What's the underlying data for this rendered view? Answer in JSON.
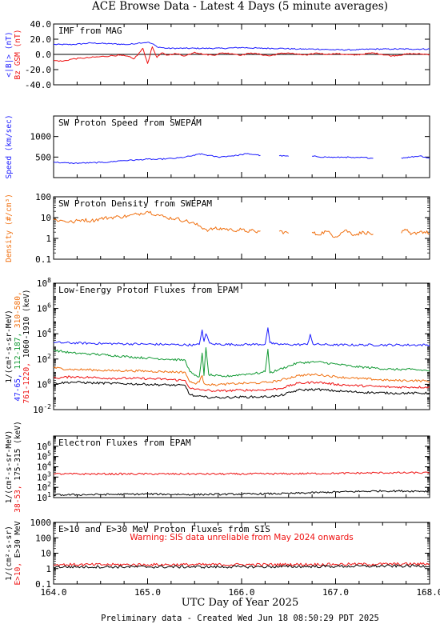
{
  "page": {
    "title": "ACE Browse Data - Latest 4 Days (5 minute averages)",
    "xlabel": "UTC Day of Year 2025",
    "footer": "Preliminary data - Created Wed Jun 18 08:50:29 PDT 2025"
  },
  "colors": {
    "blue": "#1a1aff",
    "red": "#ee1111",
    "orange": "#f07010",
    "green": "#119933",
    "black": "#000000"
  },
  "chart_data": [
    {
      "type": "line",
      "title": "IMF from MAG",
      "x_range": [
        164.0,
        168.0
      ],
      "y_scale": "linear",
      "ylim": [
        -40,
        40
      ],
      "y_ticks": [
        "40.0",
        "20.0",
        "0.0",
        "-20.0",
        "-40.0"
      ],
      "y_tick_values": [
        40,
        20,
        0,
        -20,
        -40
      ],
      "ylabel_lines": [
        {
          "text": "<|B|> (nT)",
          "color": "#1a1aff"
        },
        {
          "text": "Bz GSM (nT)",
          "color": "#ee1111"
        }
      ],
      "zero_line": true,
      "series": [
        {
          "name": "<|B|> (nT)",
          "color": "#1a1aff",
          "x": [
            164.0,
            164.2,
            164.4,
            164.6,
            164.8,
            164.9,
            165.0,
            165.05,
            165.1,
            165.2,
            165.4,
            165.6,
            165.8,
            166.0,
            166.2,
            166.4,
            166.6,
            166.8,
            167.0,
            167.2,
            167.4,
            167.6,
            167.8,
            168.0
          ],
          "y": [
            13,
            13,
            15,
            14,
            13,
            15,
            16,
            14,
            10,
            8,
            8,
            8,
            8,
            9,
            8,
            8,
            7,
            7,
            6,
            6,
            7,
            7,
            7,
            7
          ]
        },
        {
          "name": "Bz GSM (nT)",
          "color": "#ee1111",
          "x": [
            164.0,
            164.1,
            164.2,
            164.3,
            164.4,
            164.5,
            164.6,
            164.7,
            164.8,
            164.85,
            164.9,
            164.95,
            165.0,
            165.05,
            165.1,
            165.15,
            165.2,
            165.3,
            165.4,
            165.5,
            165.6,
            165.7,
            165.8,
            165.9,
            166.0,
            166.1,
            166.2,
            166.3,
            166.4,
            166.5,
            166.6,
            166.7,
            166.8,
            166.9,
            167.0,
            167.2,
            167.4,
            167.6,
            167.8,
            168.0
          ],
          "y": [
            -8,
            -9,
            -6,
            -5,
            -4,
            -3,
            -2,
            -1,
            -3,
            -6,
            0,
            8,
            -12,
            10,
            -4,
            2,
            -1,
            1,
            -2,
            3,
            0,
            -1,
            2,
            1,
            -1,
            2,
            0,
            -2,
            1,
            2,
            0,
            -1,
            2,
            0,
            1,
            -1,
            2,
            -2,
            1,
            0
          ]
        }
      ]
    },
    {
      "type": "line",
      "title": "SW Proton Speed from SWEPAM",
      "x_range": [
        164.0,
        168.0
      ],
      "y_scale": "linear",
      "ylim": [
        0,
        1500
      ],
      "y_ticks": [
        "1000",
        "500"
      ],
      "y_tick_values": [
        1000,
        500
      ],
      "ylabel_lines": [
        {
          "text": "Speed (km/sec)",
          "color": "#1a1aff"
        }
      ],
      "series": [
        {
          "name": "Speed (km/sec)",
          "color": "#1a1aff",
          "segment_gap": 0.05,
          "x": [
            164.0,
            164.1,
            164.2,
            164.3,
            164.4,
            164.5,
            164.6,
            164.7,
            164.8,
            164.9,
            165.0,
            165.1,
            165.2,
            165.3,
            165.4,
            165.5,
            165.55,
            165.6,
            165.65,
            165.7,
            165.75,
            165.8,
            165.85,
            165.9,
            165.95,
            166.0,
            166.05,
            166.1,
            166.15,
            166.2,
            166.4,
            166.5,
            166.75,
            166.8,
            166.9,
            167.0,
            167.1,
            167.2,
            167.3,
            167.4,
            167.7,
            167.75,
            167.8,
            167.9,
            168.0
          ],
          "y": [
            380,
            360,
            350,
            355,
            360,
            370,
            380,
            410,
            420,
            430,
            450,
            440,
            460,
            470,
            500,
            540,
            580,
            560,
            540,
            520,
            500,
            510,
            520,
            530,
            540,
            560,
            580,
            570,
            560,
            540,
            530,
            520,
            520,
            510,
            500,
            490,
            500,
            480,
            490,
            470,
            480,
            490,
            500,
            530,
            470
          ]
        }
      ]
    },
    {
      "type": "line",
      "title": "SW Proton Density from SWEPAM",
      "x_range": [
        164.0,
        168.0
      ],
      "y_scale": "log",
      "ylim": [
        0.1,
        100
      ],
      "y_ticks": [
        "100",
        "10",
        "1",
        "0.1"
      ],
      "y_tick_values": [
        100,
        10,
        1,
        0.1
      ],
      "ylabel_lines": [
        {
          "text": "Density (#/cm³)",
          "color": "#f07010"
        }
      ],
      "series": [
        {
          "name": "Density (#/cm³)",
          "color": "#f07010",
          "segment_gap": 0.05,
          "x": [
            164.0,
            164.1,
            164.2,
            164.3,
            164.4,
            164.5,
            164.6,
            164.7,
            164.8,
            164.9,
            165.0,
            165.1,
            165.2,
            165.3,
            165.4,
            165.5,
            165.55,
            165.6,
            165.65,
            165.7,
            165.75,
            165.8,
            165.9,
            166.0,
            166.05,
            166.1,
            166.15,
            166.2,
            166.4,
            166.5,
            166.75,
            166.8,
            166.9,
            167.0,
            167.1,
            167.2,
            167.3,
            167.4,
            167.7,
            167.75,
            167.8,
            167.9,
            168.0
          ],
          "y": [
            8,
            7,
            6,
            8,
            7,
            9,
            10,
            11,
            12,
            15,
            20,
            14,
            10,
            9,
            7,
            5,
            4,
            3,
            2.5,
            3,
            2.8,
            3,
            2.5,
            2.6,
            2.2,
            2.4,
            2.0,
            2.3,
            2.2,
            1.8,
            2.0,
            1.5,
            2.2,
            1.2,
            2.5,
            1.5,
            2.0,
            1.6,
            1.8,
            2.5,
            1.5,
            2.2,
            1.8
          ]
        }
      ]
    },
    {
      "type": "line",
      "title": "Low-Energy Proton Fluxes from EPAM",
      "x_range": [
        164.0,
        168.0
      ],
      "y_scale": "log",
      "ylim": [
        0.01,
        100000000
      ],
      "y_ticks": [
        "10^8",
        "10^6",
        "10^4",
        "10^2",
        "10^0",
        "10^-2"
      ],
      "y_tick_values": [
        100000000,
        1000000,
        10000,
        100,
        1,
        0.01
      ],
      "ylabel_lines": [
        {
          "text": "1/(cm²-s-sr-MeV)",
          "color": "#000000"
        },
        {
          "text": "47-65,",
          "color": "#1a1aff"
        },
        {
          "text": "112-187,",
          "color": "#119933"
        },
        {
          "text": "310-580,",
          "color": "#f07010"
        },
        {
          "text": "761-1220,",
          "color": "#ee1111"
        },
        {
          "text": "1060-1910 (keV)",
          "color": "#000000"
        }
      ],
      "series": [
        {
          "name": "47-65",
          "color": "#1a1aff",
          "x": [
            164.0,
            164.5,
            165.0,
            165.5,
            165.55,
            165.58,
            165.6,
            165.62,
            165.66,
            165.7,
            166.0,
            166.25,
            166.28,
            166.3,
            166.35,
            166.5,
            166.7,
            166.73,
            166.76,
            167.0,
            167.5,
            168.0
          ],
          "y": [
            2000,
            1700,
            1500,
            1300,
            1400,
            20000,
            2500,
            10000,
            1800,
            1500,
            1400,
            1500,
            30000,
            2000,
            1500,
            1400,
            1400,
            9000,
            1500,
            1300,
            1300,
            1300
          ]
        },
        {
          "name": "112-187",
          "color": "#119933",
          "x": [
            164.0,
            164.2,
            164.4,
            164.6,
            164.8,
            165.0,
            165.2,
            165.4,
            165.45,
            165.5,
            165.55,
            165.58,
            165.6,
            165.62,
            165.65,
            165.7,
            165.8,
            166.0,
            166.2,
            166.25,
            166.28,
            166.3,
            166.4,
            166.6,
            166.8,
            167.0,
            167.2,
            167.4,
            167.6,
            167.8,
            168.0
          ],
          "y": [
            500,
            300,
            250,
            200,
            150,
            120,
            100,
            80,
            10,
            5,
            4,
            300,
            5,
            800,
            6,
            5,
            4,
            6,
            8,
            10,
            600,
            8,
            15,
            50,
            60,
            40,
            25,
            20,
            15,
            15,
            12
          ]
        },
        {
          "name": "310-580",
          "color": "#f07010",
          "x": [
            164.0,
            164.2,
            164.4,
            164.6,
            164.8,
            165.0,
            165.2,
            165.4,
            165.45,
            165.5,
            165.55,
            165.58,
            165.6,
            165.65,
            165.7,
            165.8,
            166.0,
            166.2,
            166.3,
            166.4,
            166.6,
            166.8,
            167.0,
            167.2,
            167.4,
            167.6,
            167.8,
            168.0
          ],
          "y": [
            20,
            15,
            14,
            12,
            12,
            11,
            10,
            9,
            1.5,
            1.2,
            1.5,
            5,
            1.2,
            1.0,
            0.9,
            1.0,
            1.2,
            1.3,
            1.5,
            2,
            5,
            6,
            4,
            3,
            2.5,
            2,
            2,
            1.8
          ]
        },
        {
          "name": "761-1220",
          "color": "#ee1111",
          "x": [
            164.0,
            164.2,
            164.4,
            164.6,
            164.8,
            165.0,
            165.2,
            165.4,
            165.45,
            165.5,
            165.6,
            165.7,
            165.8,
            166.0,
            166.2,
            166.4,
            166.6,
            166.8,
            167.0,
            167.2,
            167.4,
            167.6,
            167.8,
            168.0
          ],
          "y": [
            3,
            4,
            3.5,
            3,
            3,
            2.8,
            2.5,
            2,
            0.5,
            0.4,
            0.35,
            0.3,
            0.3,
            0.35,
            0.35,
            0.45,
            1.2,
            1.5,
            1.0,
            0.8,
            0.7,
            0.6,
            0.6,
            0.6
          ]
        },
        {
          "name": "1060-1910",
          "color": "#000000",
          "x": [
            164.0,
            164.2,
            164.4,
            164.6,
            164.8,
            165.0,
            165.2,
            165.4,
            165.45,
            165.5,
            165.6,
            165.7,
            165.8,
            166.0,
            166.2,
            166.4,
            166.6,
            166.8,
            167.0,
            167.2,
            167.4,
            167.6,
            167.8,
            168.0
          ],
          "y": [
            1.2,
            1.5,
            1.3,
            1.2,
            1.1,
            1.0,
            0.9,
            0.8,
            0.15,
            0.12,
            0.1,
            0.09,
            0.09,
            0.1,
            0.1,
            0.12,
            0.35,
            0.4,
            0.3,
            0.25,
            0.22,
            0.2,
            0.2,
            0.2
          ]
        }
      ]
    },
    {
      "type": "line",
      "title": "Electron Fluxes from EPAM",
      "x_range": [
        164.0,
        168.0
      ],
      "y_scale": "log",
      "ylim": [
        10,
        10000000
      ],
      "y_ticks": [
        "10^6",
        "10^5",
        "10^4",
        "10^3",
        "10^2",
        "10^1"
      ],
      "y_tick_values": [
        1000000,
        100000,
        10000,
        1000,
        100,
        10
      ],
      "ylabel_lines": [
        {
          "text": "1/(cm²-s-sr-MeV)",
          "color": "#000000"
        },
        {
          "text": "38-53,",
          "color": "#ee1111"
        },
        {
          "text": "175-315 (keV)",
          "color": "#000000"
        }
      ],
      "series": [
        {
          "name": "38-53",
          "color": "#ee1111",
          "x": [
            164.0,
            164.5,
            165.0,
            165.5,
            166.0,
            166.5,
            167.0,
            167.5,
            168.0
          ],
          "y": [
            2000,
            2000,
            2000,
            2000,
            2000,
            2100,
            2300,
            2600,
            2600
          ]
        },
        {
          "name": "175-315",
          "color": "#000000",
          "x": [
            164.0,
            164.5,
            165.0,
            165.5,
            166.0,
            166.5,
            167.0,
            167.5,
            168.0
          ],
          "y": [
            18,
            20,
            22,
            20,
            22,
            25,
            35,
            45,
            42
          ]
        }
      ]
    },
    {
      "type": "line",
      "title": "E>10 and E>30 MeV Proton Fluxes from SIS",
      "x_range": [
        164.0,
        168.0
      ],
      "x_ticks": [
        "164.0",
        "165.0",
        "166.0",
        "167.0",
        "168.0"
      ],
      "x_tick_values": [
        164.0,
        165.0,
        166.0,
        167.0,
        168.0
      ],
      "y_scale": "log",
      "ylim": [
        0.1,
        1000
      ],
      "y_ticks": [
        "1000",
        "100",
        "10",
        "1",
        "0.1"
      ],
      "y_tick_values": [
        1000,
        100,
        10,
        1,
        0.1
      ],
      "ylabel_lines": [
        {
          "text": "1/(cm²-s-sr)",
          "color": "#000000"
        },
        {
          "text": "E>10,",
          "color": "#ee1111"
        },
        {
          "text": "E>30 MeV",
          "color": "#000000"
        }
      ],
      "annotation": "Warning: SIS data unreliable from May 2024 onwards",
      "series": [
        {
          "name": "E>10",
          "color": "#ee1111",
          "x": [
            164.0,
            165.0,
            166.0,
            167.0,
            168.0
          ],
          "y": [
            1.8,
            1.8,
            1.8,
            1.9,
            2.0
          ]
        },
        {
          "name": "E>30 MeV",
          "color": "#000000",
          "x": [
            164.0,
            165.0,
            166.0,
            167.0,
            168.0
          ],
          "y": [
            1.3,
            1.3,
            1.3,
            1.4,
            1.5
          ]
        }
      ]
    }
  ]
}
